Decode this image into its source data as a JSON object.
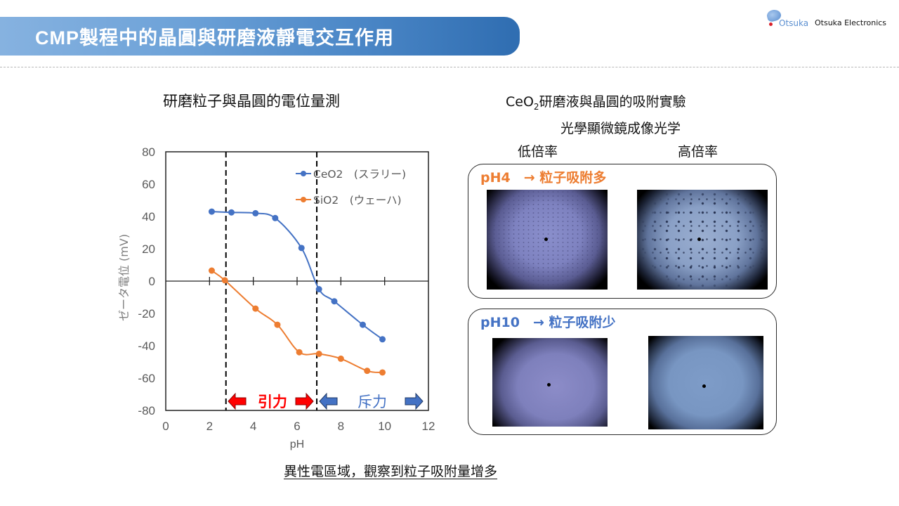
{
  "header": {
    "title": "CMP製程中的晶圓與研磨液靜電交互作用",
    "logo_word": "Otsuka",
    "logo_company": "Otsuka Electronics"
  },
  "left": {
    "title": "研磨粒子與晶圓的電位量測"
  },
  "chart_data": {
    "type": "line",
    "title": "研磨粒子與晶圓的電位量測",
    "xlabel": "pH",
    "ylabel": "ゼータ電位 (mV)",
    "xlim": [
      0,
      12
    ],
    "ylim": [
      -80,
      80
    ],
    "x_ticks": [
      0,
      2,
      4,
      6,
      8,
      10,
      12
    ],
    "y_ticks": [
      80,
      60,
      40,
      20,
      0,
      -20,
      -40,
      -60,
      -80
    ],
    "grid": false,
    "legend_position": "upper right",
    "series": [
      {
        "name": "CeO2 (スラリー)",
        "color": "#4472c4",
        "x": [
          2.1,
          3.0,
          4.1,
          5.0,
          6.2,
          7.0,
          7.7,
          9.0,
          9.9
        ],
        "y": [
          43,
          42.5,
          42,
          39,
          20.5,
          -5,
          -12.5,
          -27,
          -36
        ]
      },
      {
        "name": "SiO2 (ウェーハ)",
        "color": "#ed7d31",
        "x": [
          2.1,
          2.7,
          4.1,
          5.1,
          6.1,
          7.0,
          8.0,
          9.2,
          9.9
        ],
        "y": [
          6.5,
          0.5,
          -17,
          -27,
          -44,
          -45,
          -48,
          -55.5,
          -56.5
        ]
      }
    ],
    "annotations": [
      {
        "type": "vline",
        "x": 2.75,
        "style": "dashed"
      },
      {
        "type": "vline",
        "x": 6.9,
        "style": "dashed"
      },
      {
        "type": "region_label",
        "text": "引力",
        "color": "#ff0000",
        "x_range": [
          2.75,
          6.9
        ]
      },
      {
        "type": "region_label",
        "text": "斥力",
        "color": "#4472c4",
        "x_range": [
          6.9,
          12
        ]
      }
    ]
  },
  "right": {
    "title_prefix": "CeO",
    "title_sub": "2",
    "title_suffix": "研磨液與晶圓的吸附實驗",
    "subtitle": "光學顯微鏡成像光学",
    "low_mag": "低倍率",
    "high_mag": "高倍率",
    "panels": [
      {
        "label": "pH4　→  粒子吸附多",
        "color": "#ed7d31"
      },
      {
        "label": "pH10　→  粒子吸附少",
        "color": "#4472c4"
      }
    ]
  },
  "conclusion": "異性電區域，觀察到粒子吸附量增多"
}
